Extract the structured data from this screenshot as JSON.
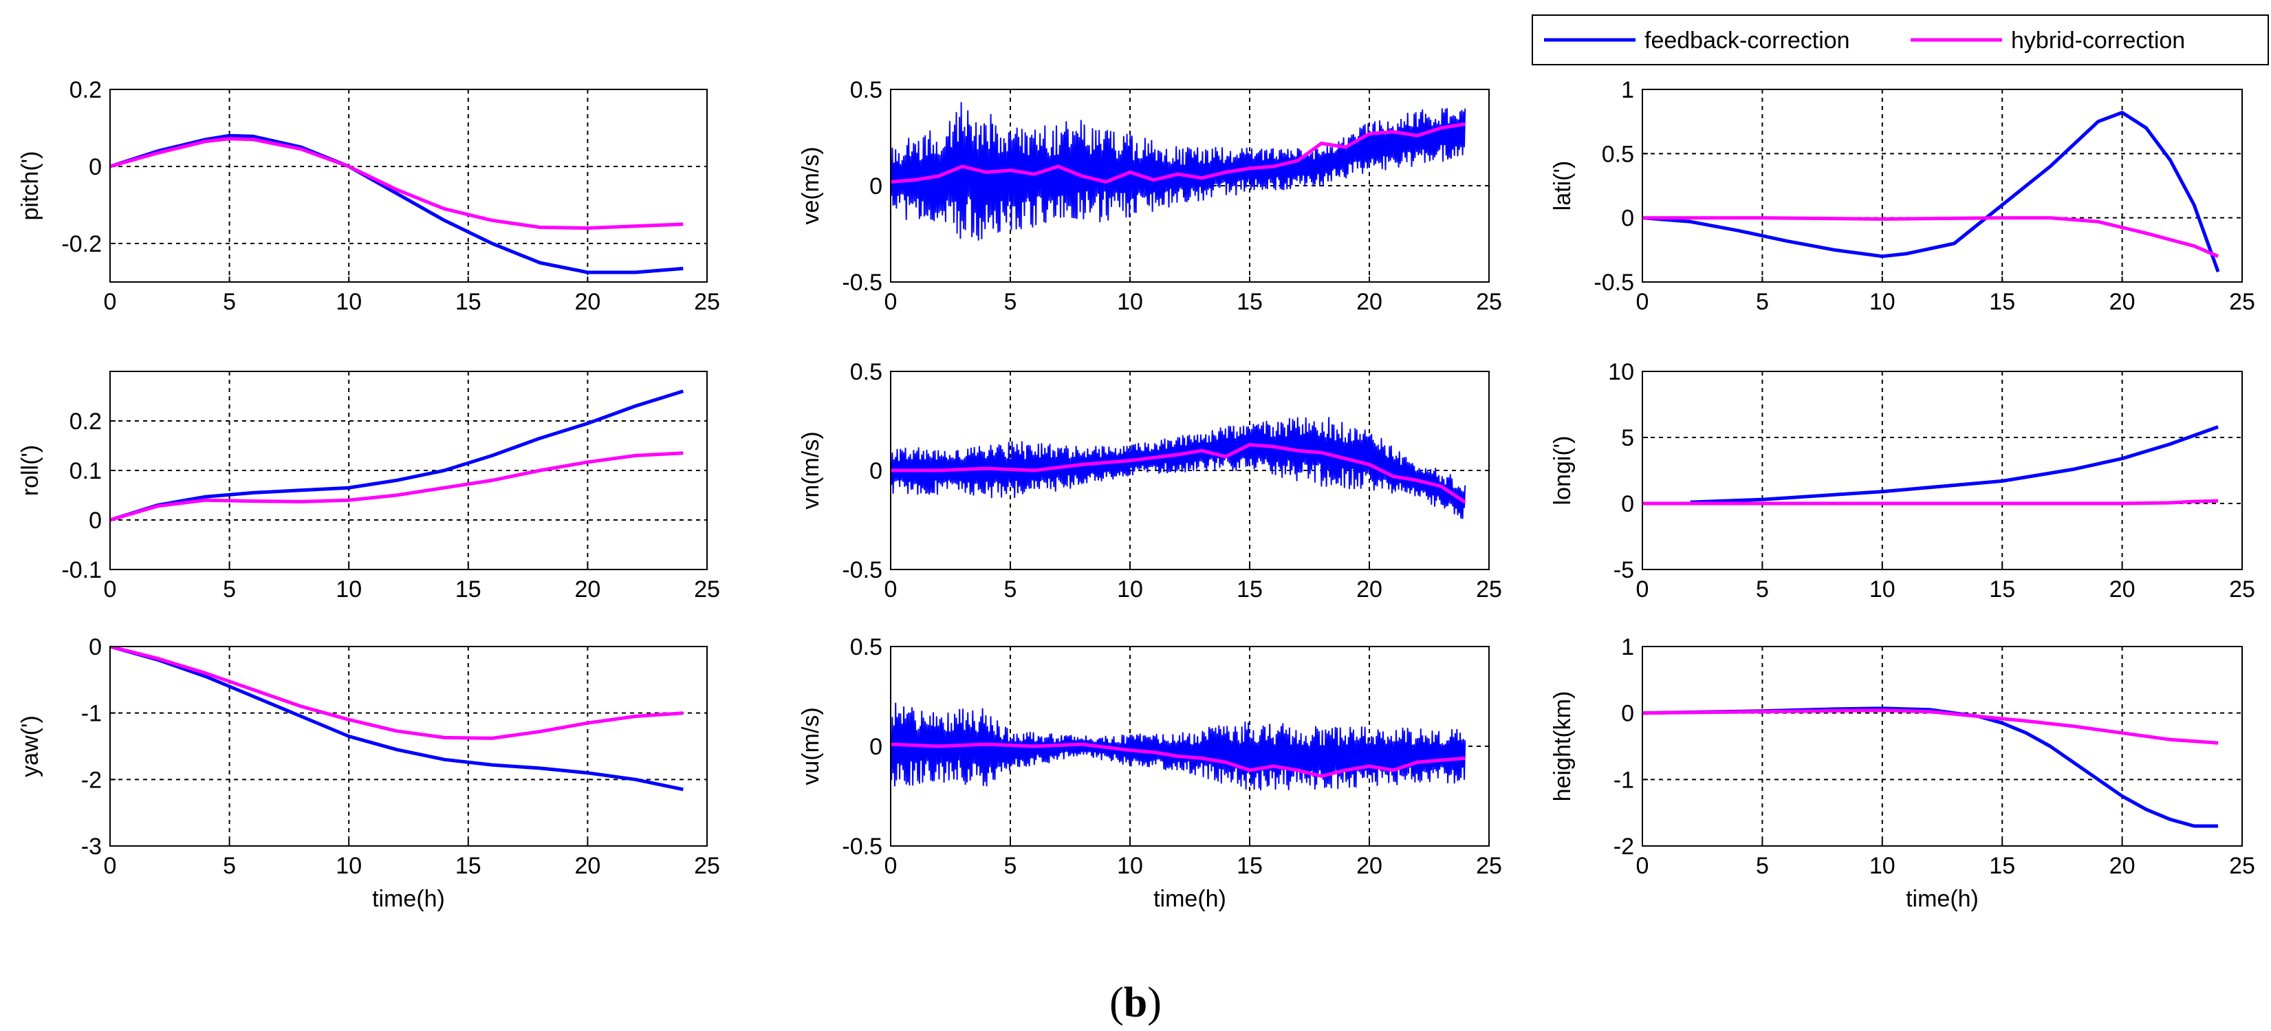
{
  "figure_label": {
    "open": "(",
    "letter": "b",
    "close": ")"
  },
  "legend": {
    "series": [
      {
        "name": "feedback-correction",
        "color": "#0000ff"
      },
      {
        "name": "hybrid-correction",
        "color": "#ff00ff"
      }
    ]
  },
  "colors": {
    "feedback": "#0000ff",
    "hybrid": "#ff00ff",
    "grid": "#000000",
    "axes": "#000000"
  },
  "chart_data": [
    {
      "id": "pitch",
      "type": "line",
      "row": 0,
      "col": 0,
      "ylabel": "pitch(')",
      "xlabel": "",
      "xlim": [
        0,
        25
      ],
      "ylim": [
        -0.3,
        0.2
      ],
      "xticks": [
        0,
        5,
        10,
        15,
        20,
        25
      ],
      "xtick_labels": [
        "0",
        "5",
        "10",
        "15",
        "20",
        "25"
      ],
      "yticks": [
        0.2,
        0,
        -0.2
      ],
      "ytick_labels": [
        "0.2",
        "0",
        "-0.2"
      ],
      "series": [
        {
          "name": "feedback-correction",
          "x": [
            0,
            2,
            4,
            5,
            6,
            8,
            10,
            12,
            14,
            16,
            18,
            20,
            22,
            24
          ],
          "y": [
            0,
            0.04,
            0.07,
            0.08,
            0.078,
            0.05,
            0,
            -0.07,
            -0.14,
            -0.2,
            -0.25,
            -0.275,
            -0.275,
            -0.265
          ]
        },
        {
          "name": "hybrid-correction",
          "x": [
            0,
            2,
            4,
            5,
            6,
            8,
            10,
            12,
            14,
            16,
            18,
            20,
            22,
            24
          ],
          "y": [
            0,
            0.035,
            0.065,
            0.072,
            0.07,
            0.045,
            0,
            -0.06,
            -0.11,
            -0.14,
            -0.158,
            -0.16,
            -0.155,
            -0.15
          ]
        }
      ]
    },
    {
      "id": "ve",
      "type": "line",
      "row": 0,
      "col": 1,
      "ylabel": "ve(m/s)",
      "xlabel": "",
      "xlim": [
        0,
        25
      ],
      "ylim": [
        -0.5,
        0.5
      ],
      "xticks": [
        0,
        5,
        10,
        15,
        20,
        25
      ],
      "xtick_labels": [
        "0",
        "5",
        "10",
        "15",
        "20",
        "25"
      ],
      "yticks": [
        0.5,
        0,
        -0.5
      ],
      "ytick_labels": [
        "0.5",
        "0",
        "-0.5"
      ],
      "series": [
        {
          "name": "feedback-correction",
          "noisy": true,
          "x": [
            0,
            2,
            3,
            5,
            8,
            10,
            12,
            15,
            18,
            20,
            22,
            24
          ],
          "center": [
            0.03,
            0.05,
            0.08,
            0.03,
            0.07,
            0.05,
            0.05,
            0.08,
            0.1,
            0.2,
            0.25,
            0.28
          ],
          "amplitude": [
            0.2,
            0.25,
            0.38,
            0.28,
            0.27,
            0.22,
            0.15,
            0.12,
            0.1,
            0.13,
            0.15,
            0.13
          ]
        },
        {
          "name": "hybrid-correction",
          "x": [
            0,
            1,
            2,
            3,
            4,
            5,
            6,
            7,
            8,
            9,
            10,
            11,
            12,
            13,
            14,
            15,
            16,
            17,
            18,
            19,
            20,
            21,
            22,
            23,
            24
          ],
          "y": [
            0.02,
            0.03,
            0.05,
            0.1,
            0.07,
            0.08,
            0.06,
            0.1,
            0.05,
            0.02,
            0.07,
            0.03,
            0.06,
            0.04,
            0.07,
            0.09,
            0.1,
            0.13,
            0.22,
            0.2,
            0.27,
            0.28,
            0.26,
            0.3,
            0.32
          ]
        }
      ]
    },
    {
      "id": "lati",
      "type": "line",
      "row": 0,
      "col": 2,
      "ylabel": "lati(')",
      "xlabel": "",
      "xlim": [
        0,
        25
      ],
      "ylim": [
        -0.5,
        1
      ],
      "xticks": [
        0,
        5,
        10,
        15,
        20,
        25
      ],
      "xtick_labels": [
        "0",
        "5",
        "10",
        "15",
        "20",
        "25"
      ],
      "yticks": [
        1,
        0.5,
        0,
        -0.5
      ],
      "ytick_labels": [
        "1",
        "0.5",
        "0",
        "-0.5"
      ],
      "series": [
        {
          "name": "feedback-correction",
          "x": [
            0,
            2,
            4,
            6,
            8,
            10,
            11,
            13,
            15,
            17,
            19,
            20,
            21,
            22,
            23,
            24
          ],
          "y": [
            0,
            -0.03,
            -0.1,
            -0.18,
            -0.25,
            -0.3,
            -0.28,
            -0.2,
            0.1,
            0.4,
            0.75,
            0.82,
            0.7,
            0.45,
            0.1,
            -0.42
          ]
        },
        {
          "name": "hybrid-correction",
          "x": [
            0,
            5,
            10,
            15,
            17,
            19,
            21,
            23,
            24
          ],
          "y": [
            0,
            0,
            -0.01,
            0,
            0,
            -0.03,
            -0.12,
            -0.22,
            -0.3
          ]
        }
      ]
    },
    {
      "id": "roll",
      "type": "line",
      "row": 1,
      "col": 0,
      "ylabel": "roll(')",
      "xlabel": "",
      "xlim": [
        0,
        25
      ],
      "ylim": [
        -0.1,
        0.3
      ],
      "xticks": [
        0,
        5,
        10,
        15,
        20,
        25
      ],
      "xtick_labels": [
        "0",
        "5",
        "10",
        "15",
        "20",
        "25"
      ],
      "yticks": [
        0.2,
        0.1,
        0,
        -0.1
      ],
      "ytick_labels": [
        "0.2",
        "0.1",
        "0",
        "-0.1"
      ],
      "series": [
        {
          "name": "feedback-correction",
          "x": [
            0,
            2,
            4,
            6,
            8,
            10,
            12,
            14,
            16,
            18,
            20,
            22,
            24
          ],
          "y": [
            0,
            0.03,
            0.047,
            0.055,
            0.06,
            0.065,
            0.08,
            0.1,
            0.13,
            0.165,
            0.195,
            0.23,
            0.26
          ]
        },
        {
          "name": "hybrid-correction",
          "x": [
            0,
            2,
            4,
            6,
            8,
            10,
            12,
            14,
            16,
            18,
            20,
            22,
            24
          ],
          "y": [
            0,
            0.028,
            0.04,
            0.038,
            0.037,
            0.04,
            0.05,
            0.065,
            0.08,
            0.1,
            0.117,
            0.13,
            0.135
          ]
        }
      ]
    },
    {
      "id": "vn",
      "type": "line",
      "row": 1,
      "col": 1,
      "ylabel": "vn(m/s)",
      "xlabel": "",
      "xlim": [
        0,
        25
      ],
      "ylim": [
        -0.5,
        0.5
      ],
      "xticks": [
        0,
        5,
        10,
        15,
        20,
        25
      ],
      "xtick_labels": [
        "0",
        "5",
        "10",
        "15",
        "20",
        "25"
      ],
      "yticks": [
        0.5,
        0,
        -0.5
      ],
      "ytick_labels": [
        "0.5",
        "0",
        "-0.5"
      ],
      "series": [
        {
          "name": "feedback-correction",
          "noisy": true,
          "x": [
            0,
            3,
            5,
            8,
            10,
            13,
            15,
            18,
            20,
            22,
            24
          ],
          "center": [
            0,
            0,
            0,
            0.02,
            0.05,
            0.1,
            0.12,
            0.1,
            0.05,
            -0.05,
            -0.15
          ],
          "amplitude": [
            0.12,
            0.12,
            0.15,
            0.1,
            0.08,
            0.1,
            0.12,
            0.18,
            0.15,
            0.1,
            0.1
          ]
        },
        {
          "name": "hybrid-correction",
          "x": [
            0,
            2,
            4,
            6,
            8,
            10,
            12,
            13,
            14,
            15,
            16,
            17,
            18,
            19,
            20,
            21,
            22,
            23,
            24
          ],
          "y": [
            0,
            0,
            0.01,
            0,
            0.03,
            0.05,
            0.08,
            0.1,
            0.07,
            0.13,
            0.12,
            0.1,
            0.09,
            0.06,
            0.03,
            -0.03,
            -0.05,
            -0.08,
            -0.16
          ]
        }
      ]
    },
    {
      "id": "longi",
      "type": "line",
      "row": 1,
      "col": 2,
      "ylabel": "longi(')",
      "xlabel": "",
      "xlim": [
        0,
        25
      ],
      "ylim": [
        -5,
        10
      ],
      "xticks": [
        0,
        5,
        10,
        15,
        20,
        25
      ],
      "xtick_labels": [
        "0",
        "5",
        "10",
        "15",
        "20",
        "25"
      ],
      "yticks": [
        10,
        5,
        0,
        -5
      ],
      "ytick_labels": [
        "10",
        "5",
        "0",
        "-5"
      ],
      "series": [
        {
          "name": "feedback-correction",
          "x": [
            2,
            5,
            10,
            15,
            18,
            20,
            22,
            24
          ],
          "y": [
            0.1,
            0.3,
            0.9,
            1.7,
            2.6,
            3.4,
            4.5,
            5.8
          ]
        },
        {
          "name": "hybrid-correction",
          "x": [
            0,
            5,
            10,
            15,
            20,
            22,
            23,
            24
          ],
          "y": [
            0,
            0,
            0,
            0,
            0,
            0.05,
            0.15,
            0.2
          ]
        }
      ]
    },
    {
      "id": "yaw",
      "type": "line",
      "row": 2,
      "col": 0,
      "ylabel": "yaw(')",
      "xlabel": "time(h)",
      "xlim": [
        0,
        25
      ],
      "ylim": [
        -3,
        0
      ],
      "xticks": [
        0,
        5,
        10,
        15,
        20,
        25
      ],
      "xtick_labels": [
        "0",
        "5",
        "10",
        "15",
        "20",
        "25"
      ],
      "yticks": [
        0,
        -1,
        -2,
        -3
      ],
      "ytick_labels": [
        "0",
        "-1",
        "-2",
        "-3"
      ],
      "series": [
        {
          "name": "feedback-correction",
          "x": [
            0,
            2,
            4,
            6,
            8,
            10,
            12,
            14,
            16,
            18,
            20,
            22,
            24
          ],
          "y": [
            0,
            -0.2,
            -0.45,
            -0.75,
            -1.05,
            -1.35,
            -1.55,
            -1.7,
            -1.78,
            -1.83,
            -1.9,
            -2.0,
            -2.15
          ]
        },
        {
          "name": "hybrid-correction",
          "x": [
            0,
            2,
            4,
            6,
            8,
            10,
            12,
            14,
            16,
            18,
            20,
            22,
            24
          ],
          "y": [
            0,
            -0.18,
            -0.4,
            -0.65,
            -0.9,
            -1.1,
            -1.27,
            -1.37,
            -1.38,
            -1.28,
            -1.15,
            -1.05,
            -1.0
          ]
        }
      ]
    },
    {
      "id": "vu",
      "type": "line",
      "row": 2,
      "col": 1,
      "ylabel": "vu(m/s)",
      "xlabel": "time(h)",
      "xlim": [
        0,
        25
      ],
      "ylim": [
        -0.5,
        0.5
      ],
      "xticks": [
        0,
        5,
        10,
        15,
        20,
        25
      ],
      "xtick_labels": [
        "0",
        "5",
        "10",
        "15",
        "20",
        "25"
      ],
      "yticks": [
        0.5,
        0,
        -0.5
      ],
      "ytick_labels": [
        "0.5",
        "0",
        "-0.5"
      ],
      "series": [
        {
          "name": "feedback-correction",
          "noisy": true,
          "x": [
            0,
            2,
            4,
            5,
            8,
            10,
            12,
            15,
            18,
            20,
            22,
            24
          ],
          "center": [
            0,
            0,
            0,
            -0.02,
            0,
            -0.02,
            -0.03,
            -0.05,
            -0.06,
            -0.05,
            -0.05,
            -0.05
          ],
          "amplitude": [
            0.22,
            0.18,
            0.2,
            0.1,
            0.05,
            0.08,
            0.1,
            0.18,
            0.16,
            0.15,
            0.14,
            0.14
          ]
        },
        {
          "name": "hybrid-correction",
          "x": [
            0,
            2,
            4,
            6,
            8,
            10,
            11,
            12,
            13,
            14,
            15,
            16,
            17,
            18,
            19,
            20,
            21,
            22,
            23,
            24
          ],
          "y": [
            0.01,
            0,
            0.01,
            0,
            0.01,
            -0.02,
            -0.03,
            -0.05,
            -0.06,
            -0.08,
            -0.12,
            -0.1,
            -0.12,
            -0.15,
            -0.12,
            -0.1,
            -0.12,
            -0.08,
            -0.07,
            -0.06
          ]
        }
      ]
    },
    {
      "id": "height",
      "type": "line",
      "row": 2,
      "col": 2,
      "ylabel": "height(km)",
      "xlabel": "time(h)",
      "xlim": [
        0,
        25
      ],
      "ylim": [
        -2,
        1
      ],
      "xticks": [
        0,
        5,
        10,
        15,
        20,
        25
      ],
      "xtick_labels": [
        "0",
        "5",
        "10",
        "15",
        "20",
        "25"
      ],
      "yticks": [
        1,
        0,
        -1,
        -2
      ],
      "ytick_labels": [
        "1",
        "0",
        "-1",
        "-2"
      ],
      "series": [
        {
          "name": "feedback-correction",
          "x": [
            0,
            5,
            8,
            10,
            12,
            13,
            14,
            15,
            16,
            17,
            18,
            19,
            20,
            21,
            22,
            23,
            24
          ],
          "y": [
            0,
            0.03,
            0.06,
            0.07,
            0.05,
            0,
            -0.05,
            -0.15,
            -0.3,
            -0.5,
            -0.75,
            -1.0,
            -1.25,
            -1.45,
            -1.6,
            -1.7,
            -1.7
          ]
        },
        {
          "name": "hybrid-correction",
          "x": [
            0,
            5,
            10,
            12,
            14,
            16,
            18,
            20,
            22,
            24
          ],
          "y": [
            0,
            0.02,
            0.04,
            0.02,
            -0.05,
            -0.12,
            -0.2,
            -0.3,
            -0.4,
            -0.45
          ]
        }
      ]
    }
  ]
}
